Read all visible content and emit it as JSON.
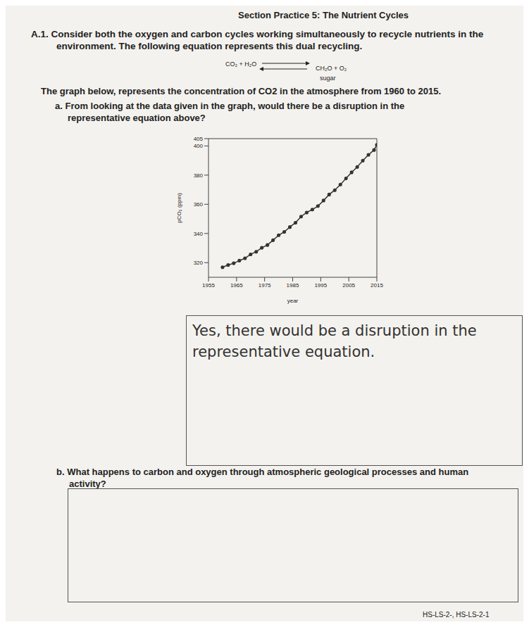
{
  "header": {
    "title": "Section Practice 5: The Nutrient Cycles"
  },
  "question": {
    "label": "A.1.",
    "text": "Consider both the oxygen and carbon cycles working simultaneously to recycle nutrients in the environment. The following equation represents this dual recycling."
  },
  "equation": {
    "left": "CO₂ + H₂O",
    "right": "CH₂O + O₂",
    "right_note": "sugar"
  },
  "graph_intro": "The graph below, represents the concentration of CO2 in the atmosphere from 1960 to 2015.",
  "part_a": {
    "label": "a.",
    "question": "From looking at the data given in the graph, would there be a disruption in the representative equation above?",
    "answer": "Yes, there would be a disruption in the representative equation."
  },
  "chart_data": {
    "type": "line",
    "x_label": "year",
    "y_label": "pCO₂ (ppm)",
    "x": [
      1960,
      1962,
      1964,
      1966,
      1968,
      1970,
      1972,
      1974,
      1976,
      1978,
      1980,
      1982,
      1984,
      1986,
      1988,
      1990,
      1992,
      1994,
      1996,
      1998,
      2000,
      2002,
      2004,
      2006,
      2008,
      2010,
      2012,
      2014,
      2015
    ],
    "values": [
      316.9,
      318.4,
      319.6,
      321.4,
      323.0,
      325.7,
      327.5,
      330.2,
      332.1,
      335.4,
      338.8,
      341.1,
      344.4,
      347.4,
      351.6,
      354.4,
      356.4,
      358.8,
      362.6,
      366.7,
      369.7,
      373.5,
      377.7,
      381.9,
      385.6,
      389.9,
      393.9,
      397.2,
      400.8
    ],
    "color": "#333333",
    "marker": "dot",
    "xlim": [
      1955,
      2015
    ],
    "xticks": [
      1955,
      1965,
      1975,
      1985,
      1995,
      2005,
      2015
    ],
    "ylim": [
      310,
      405
    ],
    "yticks": [
      320,
      340,
      360,
      380,
      400,
      405
    ],
    "grid": false
  },
  "part_b": {
    "label": "b.",
    "question": "What happens to carbon and oxygen through atmospheric geological processes and human activity?"
  },
  "footer": {
    "standards": "HS-LS-2-, HS-LS-2-1"
  }
}
